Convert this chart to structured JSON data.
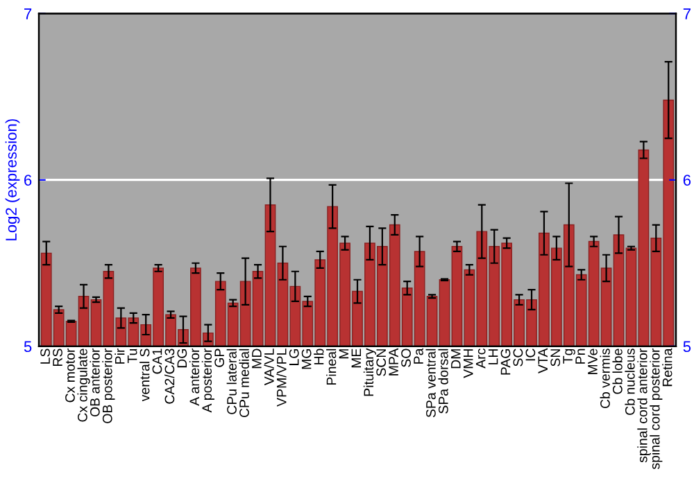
{
  "chart_data": {
    "type": "bar",
    "ylabel": "Log2 (expression)",
    "categories": [
      "LS",
      "RS",
      "Cx motor",
      "Cx cingulate",
      "OB anterior",
      "OB posterior",
      "Pir",
      "Tu",
      "ventral S",
      "CA1",
      "CA2/CA3",
      "DG",
      "A anterior",
      "A posterior",
      "GP",
      "CPu lateral",
      "CPu medial",
      "MD",
      "VA/VL",
      "VPM/VPL",
      "LG",
      "MG",
      "Hb",
      "Pineal",
      "M",
      "ME",
      "Pituitary",
      "SCN",
      "MPA",
      "SO",
      "Pa",
      "SPa ventral",
      "SPa dorsal",
      "DM",
      "VMH",
      "Arc",
      "LH",
      "PAG",
      "SC",
      "IC",
      "VTA",
      "SN",
      "Tg",
      "Pn",
      "MVe",
      "Cb vermis",
      "Cb lobe",
      "Cb nucleus",
      "spinal cord anterior",
      "spinal cord posterior",
      "Retina"
    ],
    "values": [
      5.56,
      5.22,
      5.15,
      5.3,
      5.28,
      5.45,
      5.17,
      5.17,
      5.13,
      5.47,
      5.19,
      5.1,
      5.47,
      5.08,
      5.39,
      5.26,
      5.39,
      5.45,
      5.85,
      5.5,
      5.36,
      5.27,
      5.52,
      5.84,
      5.62,
      5.33,
      5.62,
      5.6,
      5.73,
      5.35,
      5.57,
      5.3,
      5.4,
      5.6,
      5.46,
      5.69,
      5.6,
      5.62,
      5.28,
      5.28,
      5.68,
      5.59,
      5.73,
      5.43,
      5.63,
      5.47,
      5.67,
      5.59,
      6.18,
      5.65,
      6.48
    ],
    "errors": [
      0.07,
      0.02,
      0.005,
      0.07,
      0.015,
      0.04,
      0.06,
      0.03,
      0.06,
      0.02,
      0.02,
      0.08,
      0.03,
      0.05,
      0.05,
      0.02,
      0.14,
      0.04,
      0.16,
      0.1,
      0.09,
      0.03,
      0.05,
      0.13,
      0.04,
      0.07,
      0.1,
      0.11,
      0.06,
      0.04,
      0.09,
      0.01,
      0.005,
      0.03,
      0.03,
      0.16,
      0.1,
      0.03,
      0.03,
      0.06,
      0.13,
      0.07,
      0.25,
      0.03,
      0.03,
      0.08,
      0.11,
      0.01,
      0.05,
      0.08,
      0.23
    ],
    "color": "#b83232",
    "ylim": [
      5,
      7
    ],
    "yticks": [
      5,
      6,
      7
    ],
    "y2lim": [
      5,
      7
    ],
    "y2ticks": [
      5,
      6,
      7
    ],
    "ref_lines": [
      {
        "axis": "y",
        "value": 6,
        "color": "#ffffff"
      }
    ]
  }
}
